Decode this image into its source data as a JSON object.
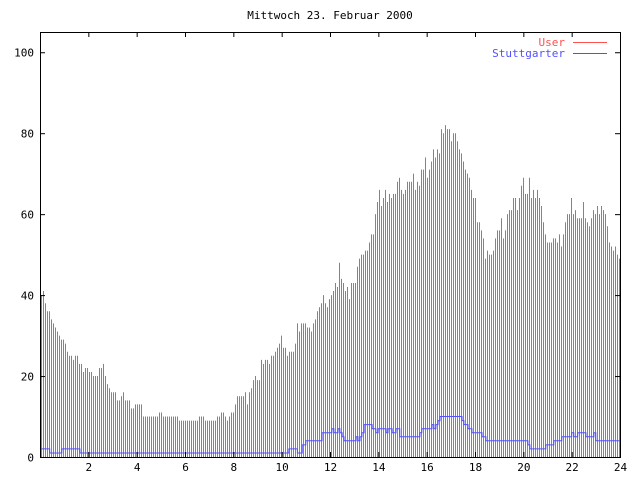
{
  "chart_data": {
    "type": "bar",
    "title": "Mittwoch 23. Februar 2000",
    "xlabel": "",
    "ylabel": "",
    "xlim": [
      0,
      24
    ],
    "ylim": [
      0,
      105
    ],
    "xticks": [
      "2",
      "4",
      "6",
      "8",
      "10",
      "12",
      "14",
      "16",
      "18",
      "20",
      "22",
      "24"
    ],
    "yticks": [
      "0",
      "20",
      "40",
      "60",
      "80",
      "100"
    ],
    "grid": false,
    "legend_position": "top-right",
    "x_step_hours": 0.0833,
    "series": [
      {
        "name": "User",
        "style": "impulses",
        "color": "#ff5050",
        "values": [
          40,
          41,
          38,
          36,
          36,
          34,
          33,
          32,
          31,
          30,
          29,
          29,
          28,
          26,
          25,
          25,
          24,
          25,
          25,
          23,
          23,
          21,
          22,
          22,
          21,
          21,
          20,
          20,
          20,
          22,
          22,
          23,
          20,
          18,
          17,
          16,
          16,
          16,
          14,
          14,
          15,
          16,
          14,
          14,
          14,
          12,
          12,
          13,
          13,
          13,
          13,
          10,
          10,
          10,
          10,
          10,
          10,
          10,
          10,
          11,
          11,
          10,
          10,
          10,
          10,
          10,
          10,
          10,
          10,
          9,
          9,
          9,
          9,
          9,
          9,
          9,
          9,
          9,
          9,
          10,
          10,
          10,
          9,
          9,
          9,
          9,
          9,
          9,
          10,
          10,
          11,
          11,
          10,
          9,
          10,
          11,
          11,
          13,
          15,
          15,
          15,
          15,
          16,
          13,
          16,
          17,
          19,
          20,
          19,
          19,
          24,
          23,
          24,
          24,
          23,
          25,
          25,
          26,
          27,
          28,
          30,
          27,
          27,
          25,
          26,
          26,
          26,
          28,
          33,
          31,
          33,
          33,
          33,
          32,
          32,
          31,
          33,
          34,
          36,
          37,
          38,
          40,
          38,
          37,
          39,
          40,
          41,
          43,
          42,
          48,
          44,
          43,
          41,
          42,
          39,
          43,
          43,
          43,
          47,
          49,
          50,
          50,
          51,
          51,
          53,
          55,
          55,
          60,
          63,
          66,
          62,
          64,
          66,
          63,
          65,
          64,
          65,
          65,
          68,
          69,
          66,
          65,
          66,
          68,
          68,
          68,
          70,
          66,
          68,
          67,
          71,
          71,
          74,
          69,
          71,
          73,
          76,
          74,
          76,
          75,
          81,
          80,
          82,
          81,
          81,
          78,
          80,
          80,
          78,
          76,
          75,
          73,
          71,
          70,
          69,
          66,
          64,
          64,
          58,
          58,
          56,
          54,
          49,
          51,
          50,
          50,
          51,
          54,
          56,
          56,
          59,
          54,
          56,
          60,
          61,
          61,
          64,
          64,
          61,
          64,
          67,
          69,
          65,
          65,
          69,
          64,
          66,
          64,
          66,
          64,
          62,
          58,
          55,
          53,
          53,
          53,
          54,
          54,
          53,
          55,
          52,
          55,
          58,
          60,
          60,
          64,
          60,
          61,
          59,
          59,
          59,
          63,
          59,
          58,
          57,
          59,
          61,
          60,
          62,
          60,
          62,
          61,
          60,
          57,
          53,
          52,
          51,
          52,
          50,
          49
        ]
      },
      {
        "name": "Stuttgarter",
        "style": "steps",
        "color": "#5050ff",
        "points": [
          [
            0,
            2
          ],
          [
            0.4,
            1
          ],
          [
            0.9,
            2
          ],
          [
            1.65,
            1
          ],
          [
            10.3,
            2
          ],
          [
            10.65,
            1
          ],
          [
            10.85,
            3
          ],
          [
            11.0,
            4
          ],
          [
            11.67,
            6
          ],
          [
            12.08,
            7
          ],
          [
            12.16,
            6
          ],
          [
            12.33,
            7
          ],
          [
            12.41,
            6
          ],
          [
            12.5,
            5
          ],
          [
            12.58,
            4
          ],
          [
            13.08,
            5
          ],
          [
            13.16,
            4
          ],
          [
            13.24,
            5
          ],
          [
            13.32,
            6
          ],
          [
            13.41,
            8
          ],
          [
            13.74,
            7
          ],
          [
            13.9,
            6
          ],
          [
            13.99,
            7
          ],
          [
            14.32,
            6
          ],
          [
            14.4,
            7
          ],
          [
            14.57,
            6
          ],
          [
            14.73,
            7
          ],
          [
            14.89,
            5
          ],
          [
            15.72,
            6
          ],
          [
            15.8,
            7
          ],
          [
            16.22,
            8
          ],
          [
            16.3,
            7
          ],
          [
            16.38,
            8
          ],
          [
            16.47,
            9
          ],
          [
            16.55,
            10
          ],
          [
            17.46,
            9
          ],
          [
            17.54,
            8
          ],
          [
            17.71,
            7
          ],
          [
            17.87,
            6
          ],
          [
            18.29,
            5
          ],
          [
            18.45,
            4
          ],
          [
            20.19,
            3
          ],
          [
            20.27,
            2
          ],
          [
            20.93,
            3
          ],
          [
            21.26,
            4
          ],
          [
            21.59,
            5
          ],
          [
            22.0,
            6
          ],
          [
            22.09,
            5
          ],
          [
            22.25,
            6
          ],
          [
            22.59,
            5
          ],
          [
            22.92,
            6
          ],
          [
            23.0,
            4
          ],
          [
            24,
            4
          ]
        ]
      }
    ]
  }
}
